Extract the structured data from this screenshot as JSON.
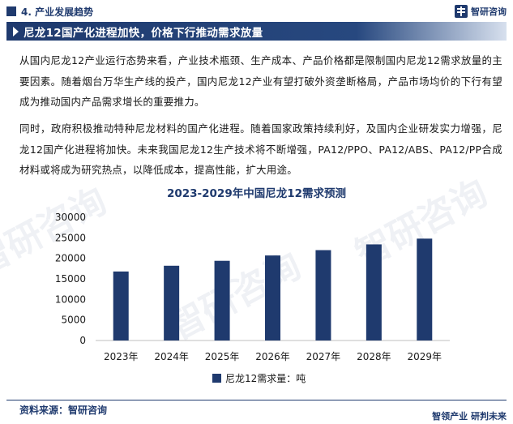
{
  "header": {
    "section_title": "4. 产业发展趋势",
    "brand_name": "智研咨询"
  },
  "banner": {
    "title": "尼龙12国产化进程加快，价格下行推动需求放量"
  },
  "paragraphs": [
    "从国内尼龙12产业运行态势来看，产业技术瓶颈、生产成本、产品价格都是限制国内尼龙12需求放量的主要因素。随着烟台万华生产线的投产，国内尼龙12产业有望打破外资垄断格局，产品市场均价的下行有望成为推动国内产品需求增长的重要推力。",
    "同时，政府积极推动特种尼龙材料的国产化进程。随着国家政策持续利好，及国内企业研发实力增强，尼龙12国产化进程将加快。未来我国尼龙12生产技术将不断增强，PA12/PPO、PA12/ABS、PA12/PP合成材料或将成为研究热点，以降低成本，提高性能，扩大用途。"
  ],
  "chart_data": {
    "type": "bar",
    "title": "2023-2029年中国尼龙12需求预测",
    "categories": [
      "2023年",
      "2024年",
      "2025年",
      "2026年",
      "2027年",
      "2028年",
      "2029年"
    ],
    "series": [
      {
        "name": "尼龙12需求量：吨",
        "values": [
          16800,
          18200,
          19400,
          20700,
          22000,
          23400,
          24800
        ]
      }
    ],
    "y_ticks": [
      "0",
      "5000",
      "10000",
      "15000",
      "20000",
      "25000",
      "30000"
    ],
    "ylim": [
      0,
      30000
    ],
    "bar_color": "#1f3a6e",
    "grid": false,
    "legend_position": "bottom"
  },
  "footer": {
    "source": "资料来源：智研咨询",
    "slogan": "智领产业  研判未来"
  },
  "watermark": "智研咨询"
}
